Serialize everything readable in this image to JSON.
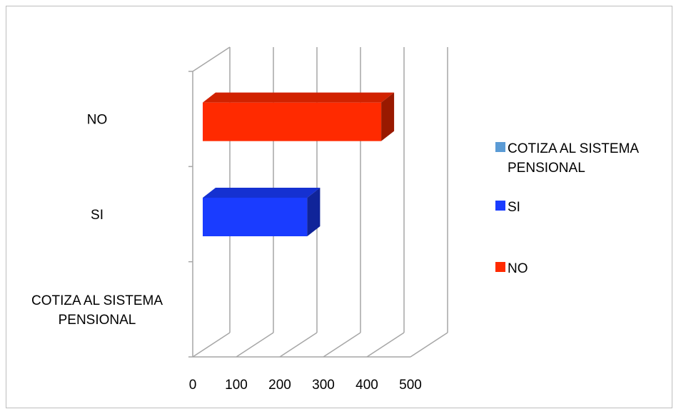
{
  "chart_data": {
    "type": "bar",
    "orientation": "horizontal",
    "style": "3d",
    "categories": [
      "COTIZA AL SISTEMA PENSIONAL",
      "SI",
      "NO"
    ],
    "category_label_lines": [
      [
        "COTIZA AL SISTEMA",
        "PENSIONAL"
      ],
      [
        "SI"
      ],
      [
        "NO"
      ]
    ],
    "values": [
      0,
      240,
      410
    ],
    "bar_colors": [
      "#5b9bd5",
      "#1a3cff",
      "#ff2a00"
    ],
    "xlim": [
      0,
      500
    ],
    "xticks": [
      0,
      100,
      200,
      300,
      400,
      500
    ],
    "grid": true,
    "legend": {
      "position": "right",
      "entries": [
        {
          "lines": [
            "COTIZA AL SISTEMA",
            "PENSIONAL"
          ],
          "color": "#5b9bd5"
        },
        {
          "lines": [
            "SI"
          ],
          "color": "#1a3cff"
        },
        {
          "lines": [
            "NO"
          ],
          "color": "#ff2a00"
        }
      ]
    },
    "title": "",
    "xlabel": "",
    "ylabel": ""
  }
}
